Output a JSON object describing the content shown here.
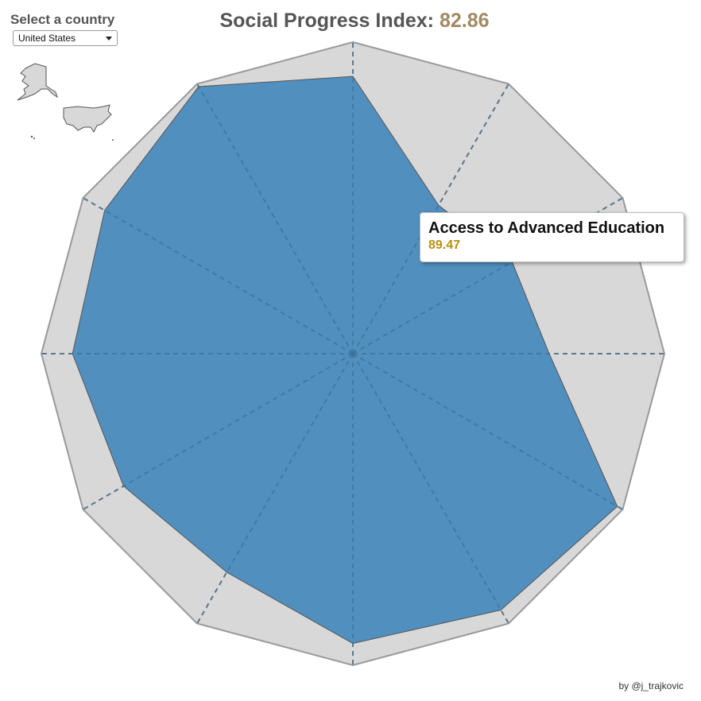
{
  "header": {
    "select_label": "Select a country",
    "title_prefix": "Social Progress Index: ",
    "title_score": "82.86",
    "score_color": "#a08a62"
  },
  "country_select": {
    "selected": "United States",
    "map_icon": "united-states-map-icon"
  },
  "tooltip": {
    "title": "Access to Advanced Education",
    "value": "89.47",
    "value_color": "#b8900f"
  },
  "credit": "by @j_trajkovic",
  "colors": {
    "area_fill": "#4a8bbd",
    "background_polygon": "#d8d8d8",
    "outline": "#999999",
    "spoke": "#888888"
  },
  "chart_data": {
    "type": "radar",
    "axes": 12,
    "rlim": [
      0,
      100
    ],
    "series": [
      {
        "name": "United States",
        "values": [
          89,
          55,
          59,
          63,
          98,
          95,
          93,
          81,
          85,
          90,
          92,
          99
        ]
      }
    ],
    "highlighted": {
      "label": "Access to Advanced Education",
      "value": 89.47
    }
  }
}
